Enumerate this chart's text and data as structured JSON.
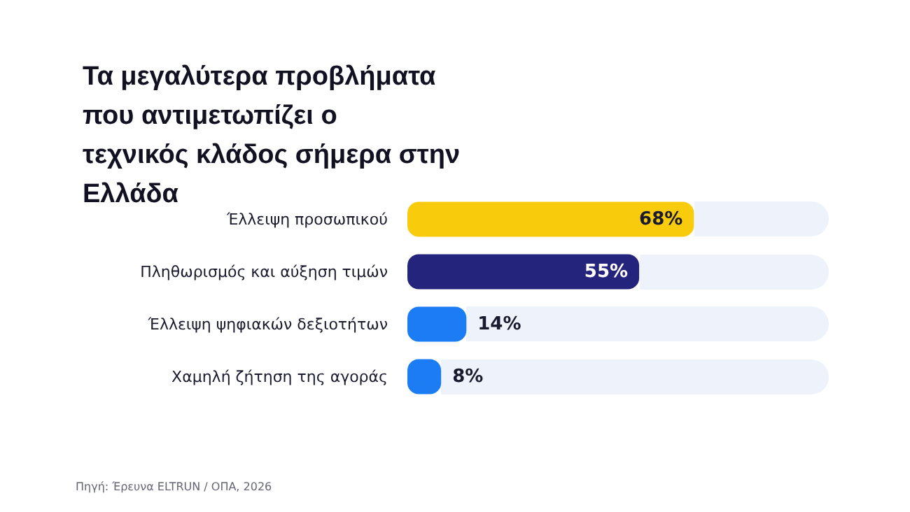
{
  "chart_data": {
    "type": "bar",
    "orientation": "horizontal",
    "title": "Τα μεγαλύτερα προβλήματα που αντιμετωπίζει ο τεχνικός κλάδος σήμερα στην Ελλάδα",
    "categories": [
      "Έλλειψη προσωπικού",
      "Πληθωρισμός και αύξηση τιμών",
      "Έλλειψη ψηφιακών δεξιοτήτων",
      "Χαμηλή ζήτηση της αγοράς"
    ],
    "values": [
      68,
      55,
      14,
      8
    ],
    "colors": [
      "#f8cb0c",
      "#25247c",
      "#1c7cf4",
      "#1c7cf4"
    ],
    "value_labels": [
      "68%",
      "55%",
      "14%",
      "8%"
    ],
    "xlim": [
      0,
      100
    ],
    "tick_labels": "y",
    "grid": false,
    "annotations": [
      "Πηγή: Έρευνα ELTRUN / ΟΠΑ, 2026"
    ]
  }
}
